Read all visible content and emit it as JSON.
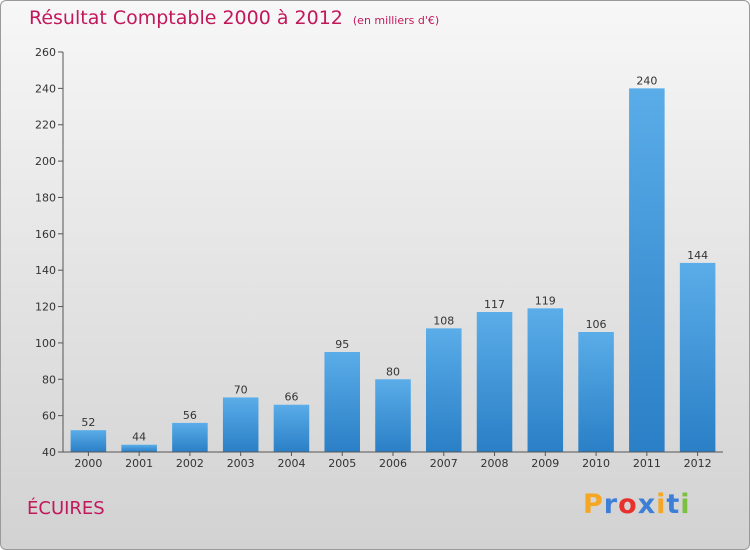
{
  "title": "Résultat Comptable 2000 à 2012",
  "unit": "(en milliers d'€)",
  "place": "ÉCUIRES",
  "logo": {
    "text": "Proxiti",
    "letters": [
      {
        "ch": "P",
        "color": "#f5a623"
      },
      {
        "ch": "r",
        "color": "#3d7fd6"
      },
      {
        "ch": "o",
        "color": "#e8312f"
      },
      {
        "ch": "x",
        "color": "#3d7fd6"
      },
      {
        "ch": "i",
        "color": "#f5a623"
      },
      {
        "ch": "t",
        "color": "#3d7fd6"
      },
      {
        "ch": "i",
        "color": "#7cc043"
      }
    ]
  },
  "colors": {
    "title": "#c2185b",
    "bar_light": "#5aade8",
    "bar_dark": "#2a7fc6"
  },
  "chart_data": {
    "type": "bar",
    "categories": [
      "2000",
      "2001",
      "2002",
      "2003",
      "2004",
      "2005",
      "2006",
      "2007",
      "2008",
      "2009",
      "2010",
      "2011",
      "2012"
    ],
    "values": [
      52,
      44,
      56,
      70,
      66,
      95,
      80,
      108,
      117,
      119,
      106,
      240,
      144
    ],
    "data_labels": [
      "52",
      "44",
      "56",
      "70",
      "66",
      "95",
      "80",
      "108",
      "117",
      "119",
      "106",
      "240",
      "144"
    ],
    "ylim": [
      40,
      260
    ],
    "yticks": [
      40,
      60,
      80,
      100,
      120,
      140,
      160,
      180,
      200,
      220,
      240,
      260
    ],
    "grid": false,
    "legend": "none"
  }
}
